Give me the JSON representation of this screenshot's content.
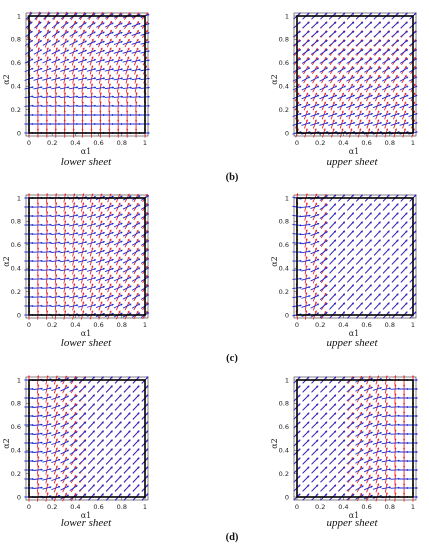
{
  "figure": {
    "rows": [
      {
        "label": "(b)"
      },
      {
        "label": "(c)"
      },
      {
        "label": "(d)"
      }
    ]
  },
  "colors": {
    "fiber_1": "#e8262b",
    "fiber_2": "#1f2bd6",
    "frame": "#000000"
  },
  "chart_data": [
    {
      "type": "vector-field",
      "row": "b",
      "sheet": "lower sheet",
      "pattern": "b-lower",
      "xlabel": "α1",
      "ylabel": "α2",
      "xlim": [
        0,
        1
      ],
      "ylim": [
        0,
        1
      ],
      "xticks": [
        "0",
        "0.2",
        "0.4",
        "0.6",
        "0.8",
        "1"
      ],
      "yticks": [
        "0",
        "0.2",
        "0.4",
        "0.6",
        "0.8",
        "1"
      ],
      "grid_points": 14
    },
    {
      "type": "vector-field",
      "row": "b",
      "sheet": "upper sheet",
      "pattern": "b-upper",
      "xlabel": "α1",
      "ylabel": "α2",
      "xlim": [
        0,
        1
      ],
      "ylim": [
        0,
        1
      ],
      "xticks": [
        "0",
        "0.2",
        "0.4",
        "0.6",
        "0.8",
        "1"
      ],
      "yticks": [
        "0",
        "0.2",
        "0.4",
        "0.6",
        "0.8",
        "1"
      ],
      "grid_points": 14
    },
    {
      "type": "vector-field",
      "row": "c",
      "sheet": "lower sheet",
      "pattern": "c-lower",
      "xlabel": "α1",
      "ylabel": "α2",
      "xlim": [
        0,
        1
      ],
      "ylim": [
        0,
        1
      ],
      "xticks": [
        "0",
        "0.2",
        "0.4",
        "0.6",
        "0.8",
        "1"
      ],
      "yticks": [
        "0",
        "0.2",
        "0.4",
        "0.6",
        "0.8",
        "1"
      ],
      "grid_points": 14
    },
    {
      "type": "vector-field",
      "row": "c",
      "sheet": "upper sheet",
      "pattern": "c-upper",
      "xlabel": "α1",
      "ylabel": "α2",
      "xlim": [
        0,
        1
      ],
      "ylim": [
        0,
        1
      ],
      "xticks": [
        "0",
        "0.2",
        "0.4",
        "0.6",
        "0.8",
        "1"
      ],
      "yticks": [
        "0",
        "0.2",
        "0.4",
        "0.6",
        "0.8",
        "1"
      ],
      "grid_points": 14
    },
    {
      "type": "vector-field",
      "row": "d",
      "sheet": "lower sheet",
      "pattern": "d-lower",
      "xlabel": "α1",
      "ylabel": "α2",
      "xlim": [
        0,
        1
      ],
      "ylim": [
        0,
        1
      ],
      "xticks": [
        "0",
        "0.2",
        "0.4",
        "0.6",
        "0.8",
        "1"
      ],
      "yticks": [
        "0",
        "0.2",
        "0.4",
        "0.6",
        "0.8",
        "1"
      ],
      "grid_points": 14
    },
    {
      "type": "vector-field",
      "row": "d",
      "sheet": "upper sheet",
      "pattern": "d-upper",
      "xlabel": "α1",
      "ylabel": "α2",
      "xlim": [
        0,
        1
      ],
      "ylim": [
        0,
        1
      ],
      "xticks": [
        "0",
        "0.2",
        "0.4",
        "0.6",
        "0.8",
        "1"
      ],
      "yticks": [
        "0",
        "0.2",
        "0.4",
        "0.6",
        "0.8",
        "1"
      ],
      "grid_points": 14
    }
  ]
}
